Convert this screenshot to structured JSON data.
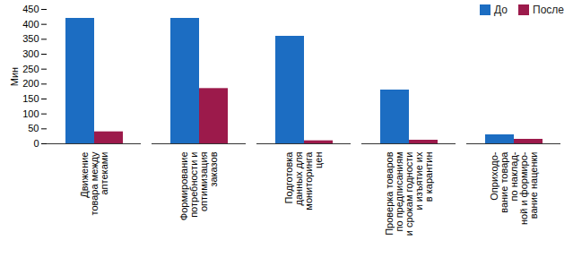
{
  "chart_data": {
    "type": "bar",
    "y_label": "Мин",
    "categories": [
      "Движение\nтовара между\nаптеками",
      "Формирование\nпотребности и\nоптимизация\nзаказов",
      "Подготовка\nданных для\nмониторинга\nцен",
      "Проверка товаров\nпо предписаниям\nи срокам годности\nи изъятие их\nв карантин",
      "Оприходо-\nвание товара\nпо наклад-\nной и формиро-\nвание наценки"
    ],
    "series": [
      {
        "name": "До",
        "color": "#1c6dc2",
        "values": [
          420,
          420,
          360,
          180,
          30
        ]
      },
      {
        "name": "После",
        "color": "#9c1a4b",
        "values": [
          40,
          185,
          10,
          12,
          15
        ]
      }
    ],
    "ylim": [
      0,
      450
    ],
    "yticks": [
      0,
      50,
      100,
      150,
      200,
      250,
      300,
      350,
      400,
      450
    ],
    "grid": false,
    "legend": "top-right"
  }
}
